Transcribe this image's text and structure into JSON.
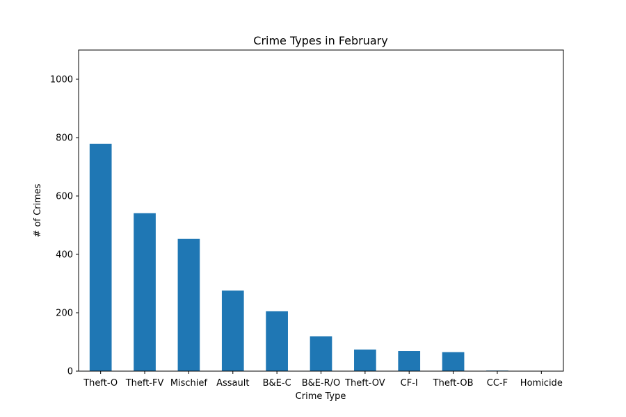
{
  "chart_data": {
    "type": "bar",
    "title": "Crime Types in February",
    "xlabel": "Crime Type",
    "ylabel": "# of Crimes",
    "categories": [
      "Theft-O",
      "Theft-FV",
      "Mischief",
      "Assault",
      "B&E-C",
      "B&E-R/O",
      "Theft-OV",
      "CF-I",
      "Theft-OB",
      "CC-F",
      "Homicide"
    ],
    "values": [
      779,
      541,
      453,
      276,
      205,
      119,
      74,
      69,
      65,
      2,
      1
    ],
    "ylim": [
      0,
      1100
    ],
    "yticks": [
      0,
      200,
      400,
      600,
      800,
      1000
    ],
    "bar_color": "#1f77b4",
    "grid": false,
    "legend": "none"
  }
}
